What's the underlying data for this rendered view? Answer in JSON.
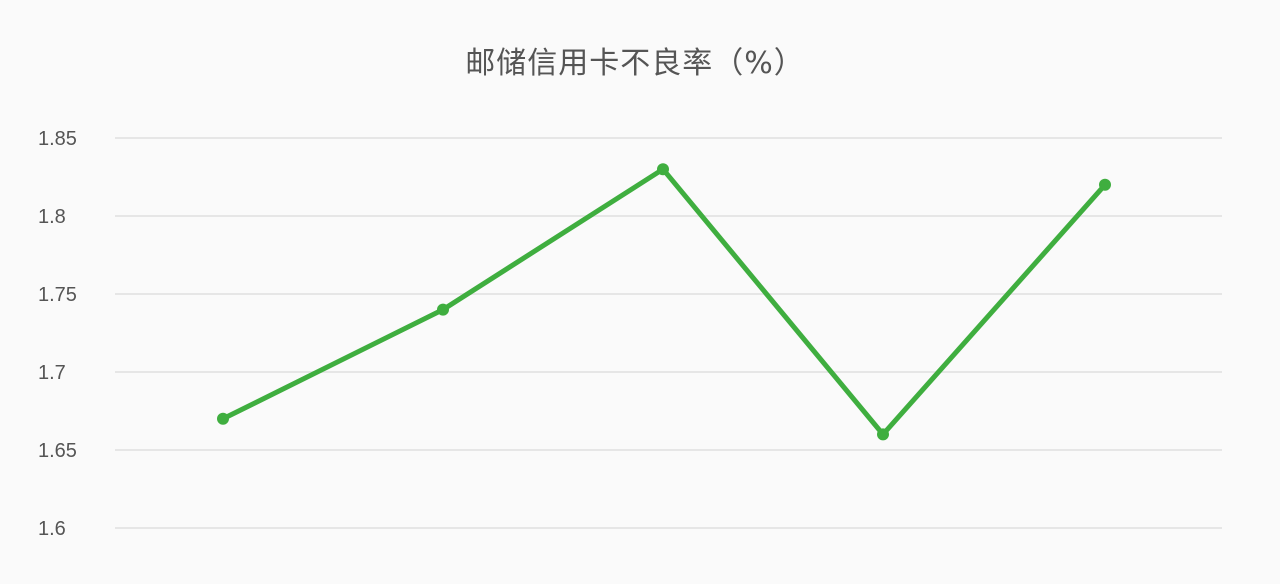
{
  "chart_data": {
    "type": "line",
    "title": "邮储信用卡不良率（%）",
    "xlabel": "",
    "ylabel": "",
    "ylim": [
      1.6,
      1.85
    ],
    "y_ticks": [
      "1.6",
      "1.65",
      "1.7",
      "1.75",
      "1.8",
      "1.85"
    ],
    "grid": true,
    "legend": "none",
    "series": [
      {
        "color": "#3fae3f",
        "values": [
          1.67,
          1.74,
          1.83,
          1.66,
          1.82
        ]
      }
    ]
  }
}
